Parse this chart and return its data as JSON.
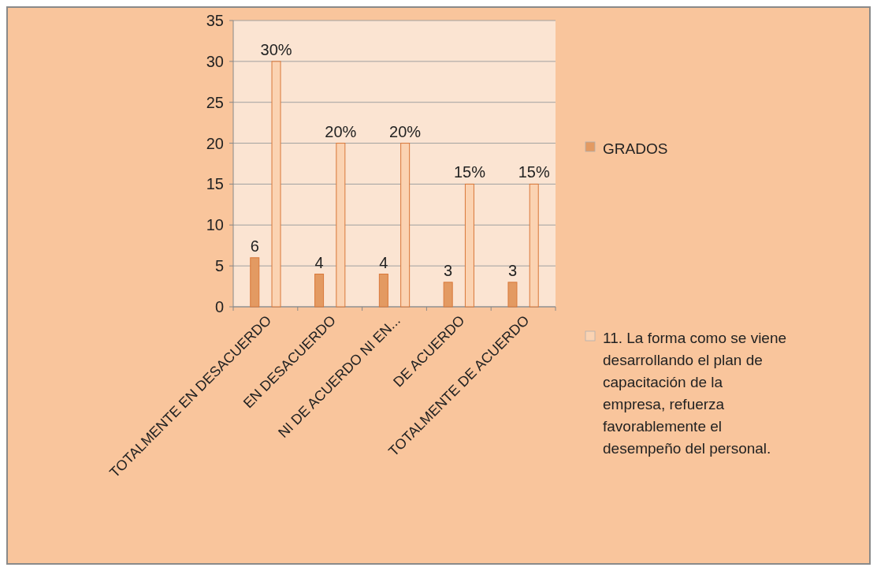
{
  "chart_data": {
    "type": "bar",
    "categories": [
      "TOTALMENTE EN DESACUERDO",
      "EN DESACUERDO",
      "NI DE ACUERDO NI EN...",
      "DE ACUERDO",
      "TOTALMENTE DE ACUERDO"
    ],
    "series": [
      {
        "name": "GRADOS",
        "color": "#e39a62",
        "values": [
          6,
          4,
          4,
          3,
          3
        ],
        "value_labels": [
          "6",
          "4",
          "4",
          "3",
          "3"
        ]
      },
      {
        "name": "11. La forma como se viene desarrollando el plan de capacitación de la empresa, refuerza favorablemente  el desempeño del personal.",
        "color": "#fbd3b2",
        "values": [
          30,
          20,
          20,
          15,
          15
        ],
        "value_labels": [
          "30%",
          "20%",
          "20%",
          "15%",
          "15%"
        ]
      }
    ],
    "ylim": [
      0,
      35
    ],
    "yticks": [
      0,
      5,
      10,
      15,
      20,
      25,
      30,
      35
    ],
    "grid": "y",
    "legend": "right"
  }
}
